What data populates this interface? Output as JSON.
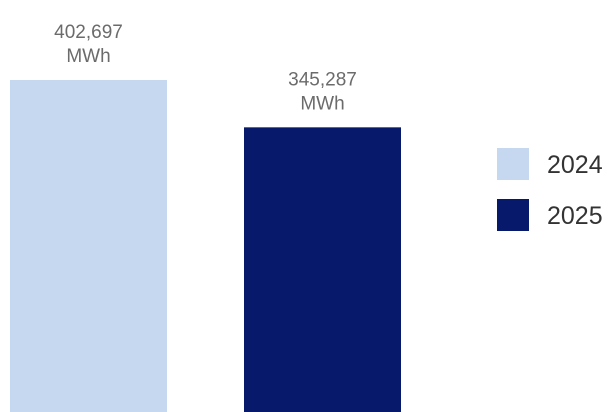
{
  "chart_data": {
    "type": "bar",
    "title": "",
    "xlabel": "",
    "ylabel": "",
    "unit": "MWh",
    "ylim": [
      0,
      402697
    ],
    "grid": false,
    "legend_position": "right",
    "series": [
      {
        "name": "2024",
        "values": [
          402697
        ],
        "value_label": "402,697",
        "color": "#c6d8ef"
      },
      {
        "name": "2025",
        "values": [
          345287
        ],
        "value_label": "345,287",
        "color": "#07196b"
      }
    ]
  }
}
